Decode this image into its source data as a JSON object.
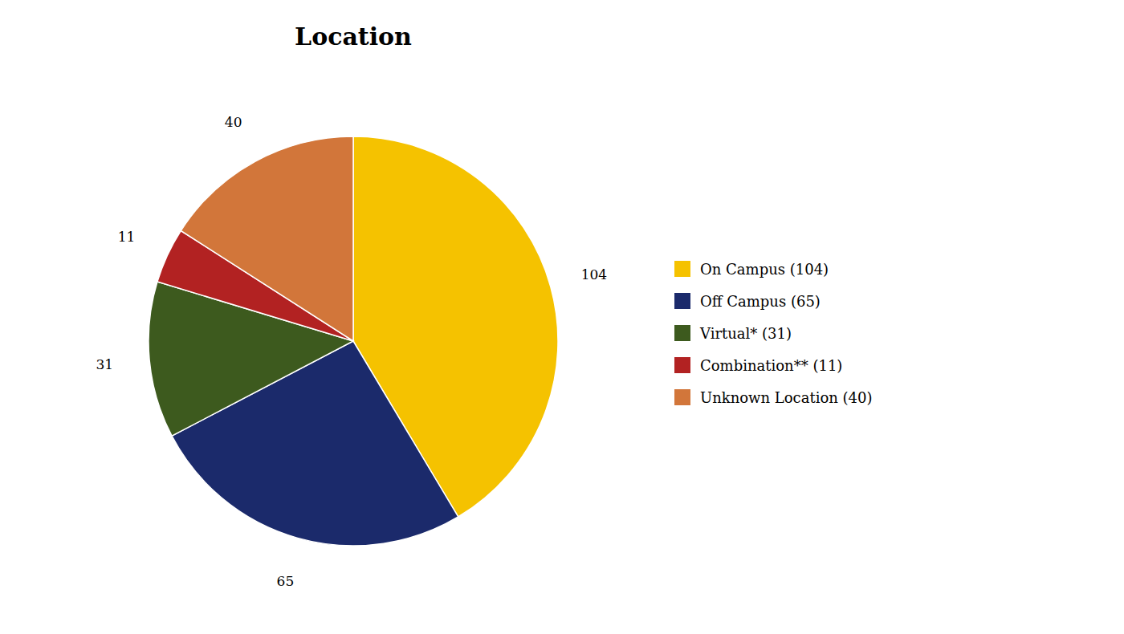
{
  "chart_data": {
    "type": "pie",
    "title": "Location",
    "categories": [
      "On Campus (104)",
      "Off Campus (65)",
      "Virtual* (31)",
      "Combination** (11)",
      "Unknown Location (40)"
    ],
    "values": [
      104,
      65,
      31,
      11,
      40
    ],
    "colors": [
      "#F5C200",
      "#1B2A6B",
      "#3D5A1E",
      "#B22222",
      "#D2763A"
    ],
    "data_labels": true,
    "legend": "right"
  }
}
